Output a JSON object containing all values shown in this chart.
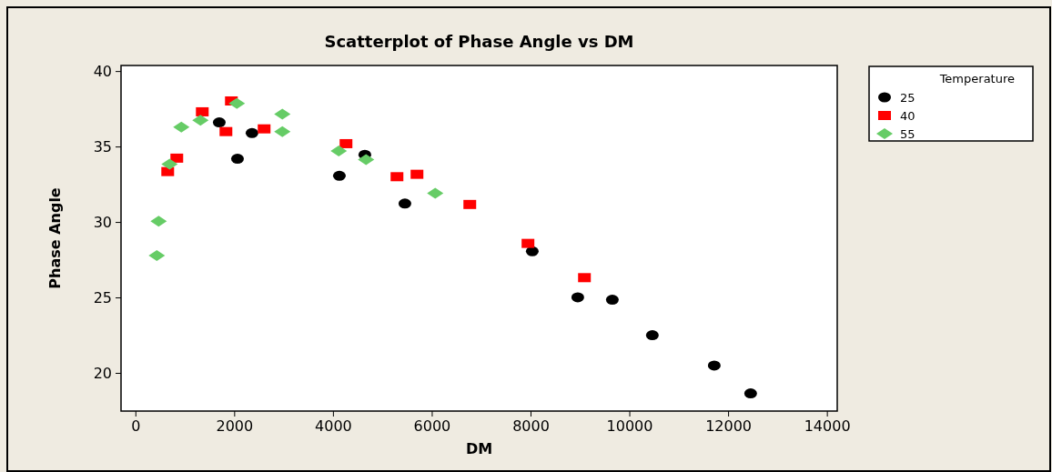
{
  "chart_data": {
    "type": "scatter",
    "title": "Scatterplot of Phase Angle vs DM",
    "xlabel": "DM",
    "ylabel": "Phase Angle",
    "legend_title": "Temperature",
    "legend": "top right",
    "grid": false,
    "xlim": [
      -300,
      14200
    ],
    "xticks": [
      0,
      2000,
      4000,
      6000,
      8000,
      10000,
      12000,
      14000
    ],
    "ylim": [
      17.5,
      40.4
    ],
    "yticks": [
      20,
      25,
      30,
      35,
      40
    ],
    "series": [
      {
        "name": "25",
        "color": "#000000",
        "marker": "circle",
        "x": [
          1689,
          2058,
          2352,
          4121,
          4636,
          5447,
          8026,
          8947,
          9647,
          10457,
          11710,
          12447
        ],
        "values": [
          36.63,
          34.22,
          35.92,
          33.09,
          34.48,
          31.25,
          28.09,
          25.04,
          24.88,
          22.53,
          20.52,
          18.67
        ]
      },
      {
        "name": "40",
        "color": "#ff0000",
        "marker": "square",
        "x": [
          645,
          829,
          1345,
          1934,
          1824,
          2597,
          4255,
          5287,
          5692,
          6761,
          7939,
          9082
        ],
        "values": [
          33.37,
          34.26,
          37.33,
          38.05,
          36.02,
          36.2,
          35.22,
          33.03,
          33.19,
          31.19,
          28.61,
          26.34
        ]
      },
      {
        "name": "55",
        "color": "#66cc66",
        "marker": "diamond",
        "x": [
          424,
          461,
          682,
          921,
          1308,
          2045,
          2966,
          2966,
          4108,
          4661,
          6061
        ],
        "values": [
          27.81,
          30.08,
          33.86,
          36.31,
          36.77,
          37.89,
          37.17,
          36.02,
          34.74,
          34.17,
          31.93
        ]
      }
    ]
  }
}
